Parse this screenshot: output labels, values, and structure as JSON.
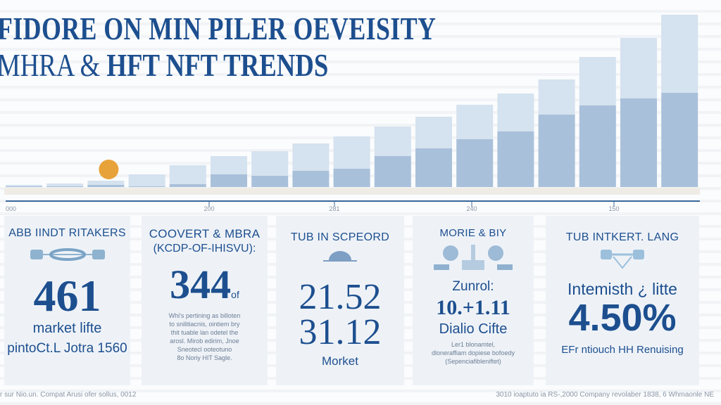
{
  "title": {
    "line1": "FIDORE ON MIN PILER OEVEISITY",
    "line2_light": "MHRA &",
    "line2_bold": "HFT NFT TRENDS"
  },
  "chart_data": {
    "type": "bar",
    "stacked": true,
    "categories": [
      "1",
      "2",
      "3",
      "4",
      "5",
      "6",
      "7",
      "8",
      "9",
      "10",
      "11",
      "12",
      "13",
      "14",
      "15",
      "16",
      "17"
    ],
    "series": [
      {
        "values": [
          1,
          1,
          3,
          1,
          4,
          18,
          16,
          23,
          26,
          44,
          55,
          68,
          79,
          103,
          116,
          126,
          134
        ]
      },
      {
        "values": [
          2,
          4,
          6,
          17,
          27,
          26,
          35,
          39,
          46,
          42,
          45,
          49,
          54,
          50,
          69,
          86,
          111
        ]
      }
    ],
    "x_tick_labels": [
      "000",
      "200",
      "281",
      "240",
      "150"
    ],
    "grid": false,
    "highlight_marker": {
      "category": "3",
      "color": "#e8a23a"
    },
    "colors": {
      "dark": "#a9c0da",
      "light": "#d5e2ef",
      "axis": "#3d6a9e"
    }
  },
  "cards": [
    {
      "heading": "ABB IINDT RITAKERS",
      "icon": "connector-icon",
      "value": "461",
      "label": "market lifte",
      "sub": "pintoCt.L Jotra 1560"
    },
    {
      "heading": "COOVERT & MBRA",
      "heading2": "(KCDP-OF-IHISVU):",
      "value": "344",
      "value_suffix": "of",
      "body": [
        "Whi's pertining as billoten",
        "to snilitiacnis, ointiem bry",
        "thit tuable lan odetel the",
        "arosl. Mirob edirim, Jnoe",
        "Sneotecl ooteotuno",
        "8o Noriy HIT Sagle."
      ]
    },
    {
      "heading": "TUB IN SCPEORD",
      "icon": "dome-icon",
      "value": "21.52",
      "value2": "31.12",
      "label": "Morket"
    },
    {
      "heading": "MORIE & BIY",
      "icon": "gauges-icon",
      "label_top": "Zunrol:",
      "value": "10.+1.11",
      "label": "Dialio Cifte",
      "body": [
        "Ler1 blonamtel,",
        "dloneraffiam dopiese bofoedy",
        "(Sepenciafibleniftet)"
      ]
    },
    {
      "heading": "TUB INTKERT. LANG",
      "icon": "bridge-icon",
      "label_top": "Intemisth ¿ litte",
      "value": "4.50%",
      "label": "EFr ntiouch HH Renuising"
    }
  ],
  "footer": {
    "left": "r sur Nio.un. Compat Arusi ofer sollus, 0012",
    "right": "3010 ioaptuto ia RS-,2000 Company revolaber 1838, 6 Whmaonle NE"
  }
}
